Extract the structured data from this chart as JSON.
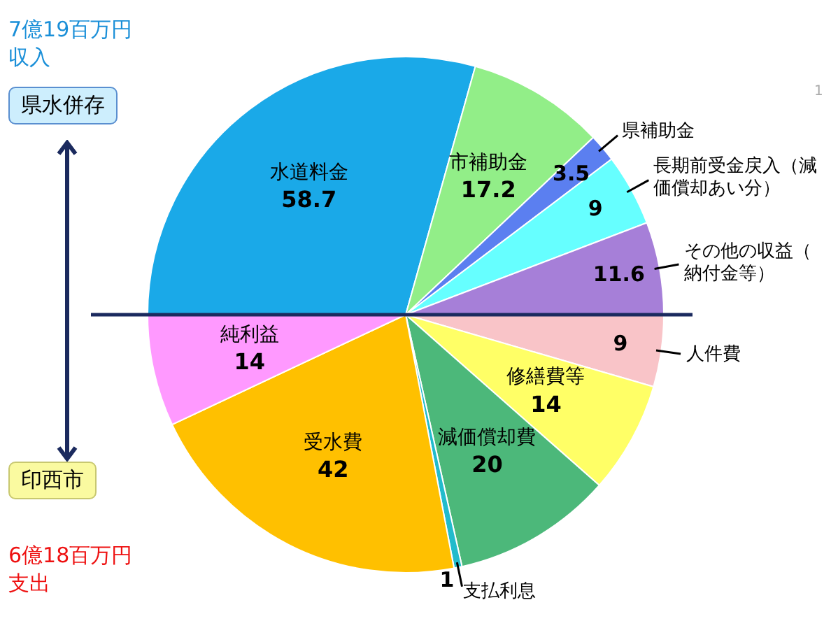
{
  "chart_data": {
    "type": "pie",
    "categories": [
      "人件費",
      "修繕費等",
      "減価償却費",
      "支払利息",
      "受水費",
      "純利益",
      "水道料金",
      "市補助金",
      "県補助金",
      "長期前受金戻入（減価償却あい分）",
      "その他の収益（納付金等）"
    ],
    "values": [
      9,
      14,
      20,
      1,
      42,
      14,
      58.7,
      17.2,
      3.5,
      9,
      11.6
    ],
    "colors": [
      "#f9c4c8",
      "#ffff66",
      "#4cb87a",
      "#22bbcc",
      "#ffc000",
      "#ff99ff",
      "#1aa9e8",
      "#92ee88",
      "#5b7ff0",
      "#66ffff",
      "#a67fd8"
    ],
    "data_labels": true,
    "annotations": [
      "7億19百万円",
      "収入",
      "県水併存",
      "印西市",
      "6億18百万円",
      "支出",
      "1"
    ],
    "legend": false
  }
}
